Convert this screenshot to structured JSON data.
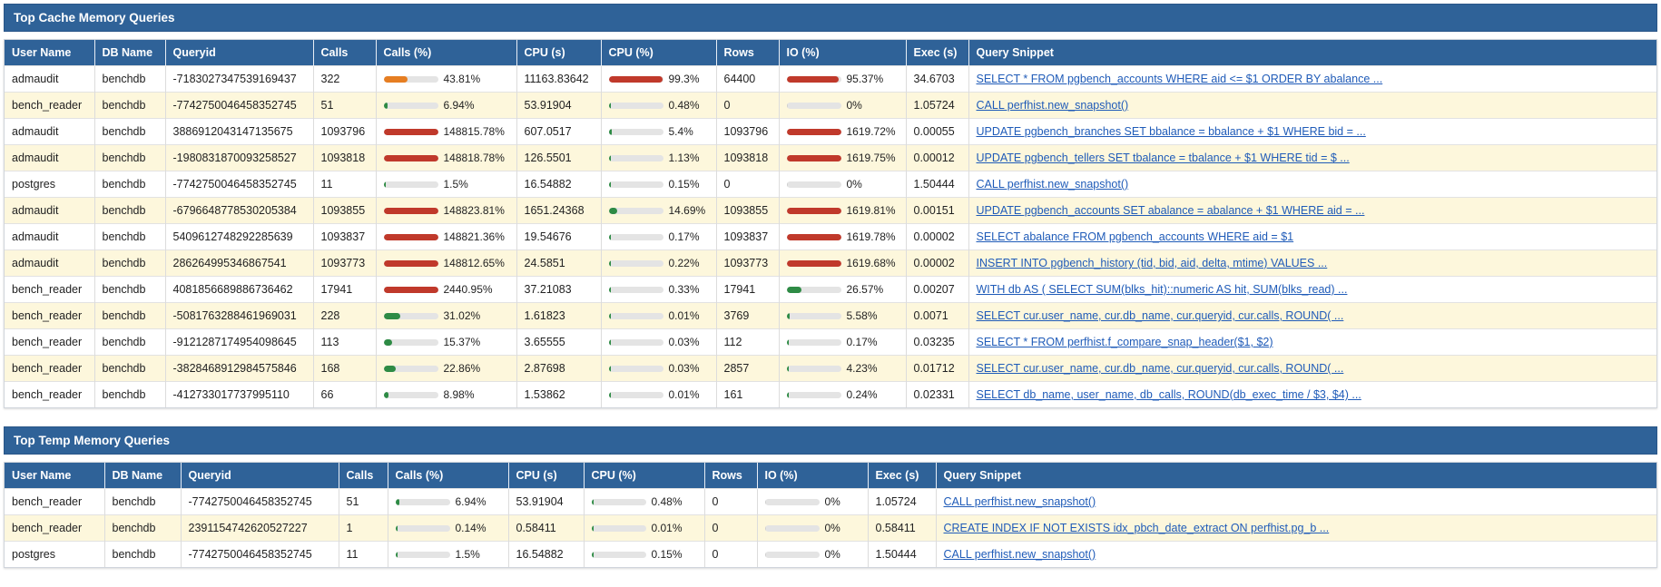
{
  "colors": {
    "header_bg": "#2f6298",
    "row_alt": "#fdf7dc",
    "bar_red": "#c0392b",
    "bar_green": "#2e8b45",
    "bar_orange": "#e67e22",
    "bar_track": "#e4e4e4",
    "link": "#1f5bb8"
  },
  "sections": [
    {
      "title": "Top Cache Memory Queries",
      "columns": [
        "User Name",
        "DB Name",
        "Queryid",
        "Calls",
        "Calls (%)",
        "CPU (s)",
        "CPU (%)",
        "Rows",
        "IO (%)",
        "Exec (s)",
        "Query Snippet"
      ],
      "rows": [
        {
          "user": "admaudit",
          "db": "benchdb",
          "queryid": "-7183027347539169437",
          "calls": "322",
          "calls_pct": "43.81%",
          "calls_fill": 0.44,
          "calls_color": "orange",
          "cpu": "11163.83642",
          "cpu_pct": "99.3%",
          "cpu_fill": 0.99,
          "cpu_color": "red",
          "rows": "64400",
          "io_pct": "95.37%",
          "io_fill": 0.95,
          "io_color": "red",
          "exec": "34.6703",
          "snippet": "SELECT * FROM pgbench_accounts WHERE aid <= $1 ORDER BY abalance ..."
        },
        {
          "user": "bench_reader",
          "db": "benchdb",
          "queryid": "-7742750046458352745",
          "calls": "51",
          "calls_pct": "6.94%",
          "calls_fill": 0.07,
          "calls_color": "green",
          "cpu": "53.91904",
          "cpu_pct": "0.48%",
          "cpu_fill": 0.02,
          "cpu_color": "green",
          "rows": "0",
          "io_pct": "0%",
          "io_fill": 0,
          "io_color": "green",
          "exec": "1.05724",
          "snippet": "CALL perfhist.new_snapshot()"
        },
        {
          "user": "admaudit",
          "db": "benchdb",
          "queryid": "3886912043147135675",
          "calls": "1093796",
          "calls_pct": "148815.78%",
          "calls_fill": 1,
          "calls_color": "red",
          "cpu": "607.0517",
          "cpu_pct": "5.4%",
          "cpu_fill": 0.05,
          "cpu_color": "green",
          "rows": "1093796",
          "io_pct": "1619.72%",
          "io_fill": 1,
          "io_color": "red",
          "exec": "0.00055",
          "snippet": "UPDATE pgbench_branches SET bbalance = bbalance + $1 WHERE bid = ..."
        },
        {
          "user": "admaudit",
          "db": "benchdb",
          "queryid": "-1980831870093258527",
          "calls": "1093818",
          "calls_pct": "148818.78%",
          "calls_fill": 1,
          "calls_color": "red",
          "cpu": "126.5501",
          "cpu_pct": "1.13%",
          "cpu_fill": 0.02,
          "cpu_color": "green",
          "rows": "1093818",
          "io_pct": "1619.75%",
          "io_fill": 1,
          "io_color": "red",
          "exec": "0.00012",
          "snippet": "UPDATE pgbench_tellers SET tbalance = tbalance + $1 WHERE tid = $ ..."
        },
        {
          "user": "postgres",
          "db": "benchdb",
          "queryid": "-7742750046458352745",
          "calls": "11",
          "calls_pct": "1.5%",
          "calls_fill": 0.015,
          "calls_color": "green",
          "cpu": "16.54882",
          "cpu_pct": "0.15%",
          "cpu_fill": 0.01,
          "cpu_color": "green",
          "rows": "0",
          "io_pct": "0%",
          "io_fill": 0,
          "io_color": "green",
          "exec": "1.50444",
          "snippet": "CALL perfhist.new_snapshot()"
        },
        {
          "user": "admaudit",
          "db": "benchdb",
          "queryid": "-6796648778530205384",
          "calls": "1093855",
          "calls_pct": "148823.81%",
          "calls_fill": 1,
          "calls_color": "red",
          "cpu": "1651.24368",
          "cpu_pct": "14.69%",
          "cpu_fill": 0.15,
          "cpu_color": "green",
          "rows": "1093855",
          "io_pct": "1619.81%",
          "io_fill": 1,
          "io_color": "red",
          "exec": "0.00151",
          "snippet": "UPDATE pgbench_accounts SET abalance = abalance + $1 WHERE aid = ..."
        },
        {
          "user": "admaudit",
          "db": "benchdb",
          "queryid": "5409612748292285639",
          "calls": "1093837",
          "calls_pct": "148821.36%",
          "calls_fill": 1,
          "calls_color": "red",
          "cpu": "19.54676",
          "cpu_pct": "0.17%",
          "cpu_fill": 0.01,
          "cpu_color": "green",
          "rows": "1093837",
          "io_pct": "1619.78%",
          "io_fill": 1,
          "io_color": "red",
          "exec": "0.00002",
          "snippet": "SELECT abalance FROM pgbench_accounts WHERE aid = $1"
        },
        {
          "user": "admaudit",
          "db": "benchdb",
          "queryid": "286264995346867541",
          "calls": "1093773",
          "calls_pct": "148812.65%",
          "calls_fill": 1,
          "calls_color": "red",
          "cpu": "24.5851",
          "cpu_pct": "0.22%",
          "cpu_fill": 0.01,
          "cpu_color": "green",
          "rows": "1093773",
          "io_pct": "1619.68%",
          "io_fill": 1,
          "io_color": "red",
          "exec": "0.00002",
          "snippet": "INSERT INTO pgbench_history (tid, bid, aid, delta, mtime) VALUES ..."
        },
        {
          "user": "bench_reader",
          "db": "benchdb",
          "queryid": "4081856689886736462",
          "calls": "17941",
          "calls_pct": "2440.95%",
          "calls_fill": 1,
          "calls_color": "red",
          "cpu": "37.21083",
          "cpu_pct": "0.33%",
          "cpu_fill": 0.01,
          "cpu_color": "green",
          "rows": "17941",
          "io_pct": "26.57%",
          "io_fill": 0.27,
          "io_color": "green",
          "exec": "0.00207",
          "snippet": "WITH db AS ( SELECT SUM(blks_hit)::numeric AS hit, SUM(blks_read) ..."
        },
        {
          "user": "bench_reader",
          "db": "benchdb",
          "queryid": "-5081763288461969031",
          "calls": "228",
          "calls_pct": "31.02%",
          "calls_fill": 0.31,
          "calls_color": "green",
          "cpu": "1.61823",
          "cpu_pct": "0.01%",
          "cpu_fill": 0.01,
          "cpu_color": "green",
          "rows": "3769",
          "io_pct": "5.58%",
          "io_fill": 0.06,
          "io_color": "green",
          "exec": "0.0071",
          "snippet": "SELECT cur.user_name, cur.db_name, cur.queryid, cur.calls, ROUND( ..."
        },
        {
          "user": "bench_reader",
          "db": "benchdb",
          "queryid": "-9121287174954098645",
          "calls": "113",
          "calls_pct": "15.37%",
          "calls_fill": 0.15,
          "calls_color": "green",
          "cpu": "3.65555",
          "cpu_pct": "0.03%",
          "cpu_fill": 0.01,
          "cpu_color": "green",
          "rows": "112",
          "io_pct": "0.17%",
          "io_fill": 0.01,
          "io_color": "green",
          "exec": "0.03235",
          "snippet": "SELECT * FROM perfhist.f_compare_snap_header($1, $2)"
        },
        {
          "user": "bench_reader",
          "db": "benchdb",
          "queryid": "-3828468912984575846",
          "calls": "168",
          "calls_pct": "22.86%",
          "calls_fill": 0.23,
          "calls_color": "green",
          "cpu": "2.87698",
          "cpu_pct": "0.03%",
          "cpu_fill": 0.01,
          "cpu_color": "green",
          "rows": "2857",
          "io_pct": "4.23%",
          "io_fill": 0.04,
          "io_color": "green",
          "exec": "0.01712",
          "snippet": "SELECT cur.user_name, cur.db_name, cur.queryid, cur.calls, ROUND( ..."
        },
        {
          "user": "bench_reader",
          "db": "benchdb",
          "queryid": "-412733017737995110",
          "calls": "66",
          "calls_pct": "8.98%",
          "calls_fill": 0.09,
          "calls_color": "green",
          "cpu": "1.53862",
          "cpu_pct": "0.01%",
          "cpu_fill": 0.01,
          "cpu_color": "green",
          "rows": "161",
          "io_pct": "0.24%",
          "io_fill": 0.01,
          "io_color": "green",
          "exec": "0.02331",
          "snippet": "SELECT db_name, user_name, db_calls, ROUND(db_exec_time / $3, $4) ..."
        }
      ]
    },
    {
      "title": "Top Temp Memory Queries",
      "columns": [
        "User Name",
        "DB Name",
        "Queryid",
        "Calls",
        "Calls (%)",
        "CPU (s)",
        "CPU (%)",
        "Rows",
        "IO (%)",
        "Exec (s)",
        "Query Snippet"
      ],
      "rows": [
        {
          "user": "bench_reader",
          "db": "benchdb",
          "queryid": "-7742750046458352745",
          "calls": "51",
          "calls_pct": "6.94%",
          "calls_fill": 0.07,
          "calls_color": "green",
          "cpu": "53.91904",
          "cpu_pct": "0.48%",
          "cpu_fill": 0.02,
          "cpu_color": "green",
          "rows": "0",
          "io_pct": "0%",
          "io_fill": 0,
          "io_color": "green",
          "exec": "1.05724",
          "snippet": "CALL perfhist.new_snapshot()"
        },
        {
          "user": "bench_reader",
          "db": "benchdb",
          "queryid": "2391154742620527227",
          "calls": "1",
          "calls_pct": "0.14%",
          "calls_fill": 0.01,
          "calls_color": "green",
          "cpu": "0.58411",
          "cpu_pct": "0.01%",
          "cpu_fill": 0.01,
          "cpu_color": "green",
          "rows": "0",
          "io_pct": "0%",
          "io_fill": 0,
          "io_color": "green",
          "exec": "0.58411",
          "snippet": "CREATE INDEX IF NOT EXISTS idx_pbch_date_extract ON perfhist.pg_b ..."
        },
        {
          "user": "postgres",
          "db": "benchdb",
          "queryid": "-7742750046458352745",
          "calls": "11",
          "calls_pct": "1.5%",
          "calls_fill": 0.015,
          "calls_color": "green",
          "cpu": "16.54882",
          "cpu_pct": "0.15%",
          "cpu_fill": 0.01,
          "cpu_color": "green",
          "rows": "0",
          "io_pct": "0%",
          "io_fill": 0,
          "io_color": "green",
          "exec": "1.50444",
          "snippet": "CALL perfhist.new_snapshot()"
        }
      ]
    }
  ]
}
